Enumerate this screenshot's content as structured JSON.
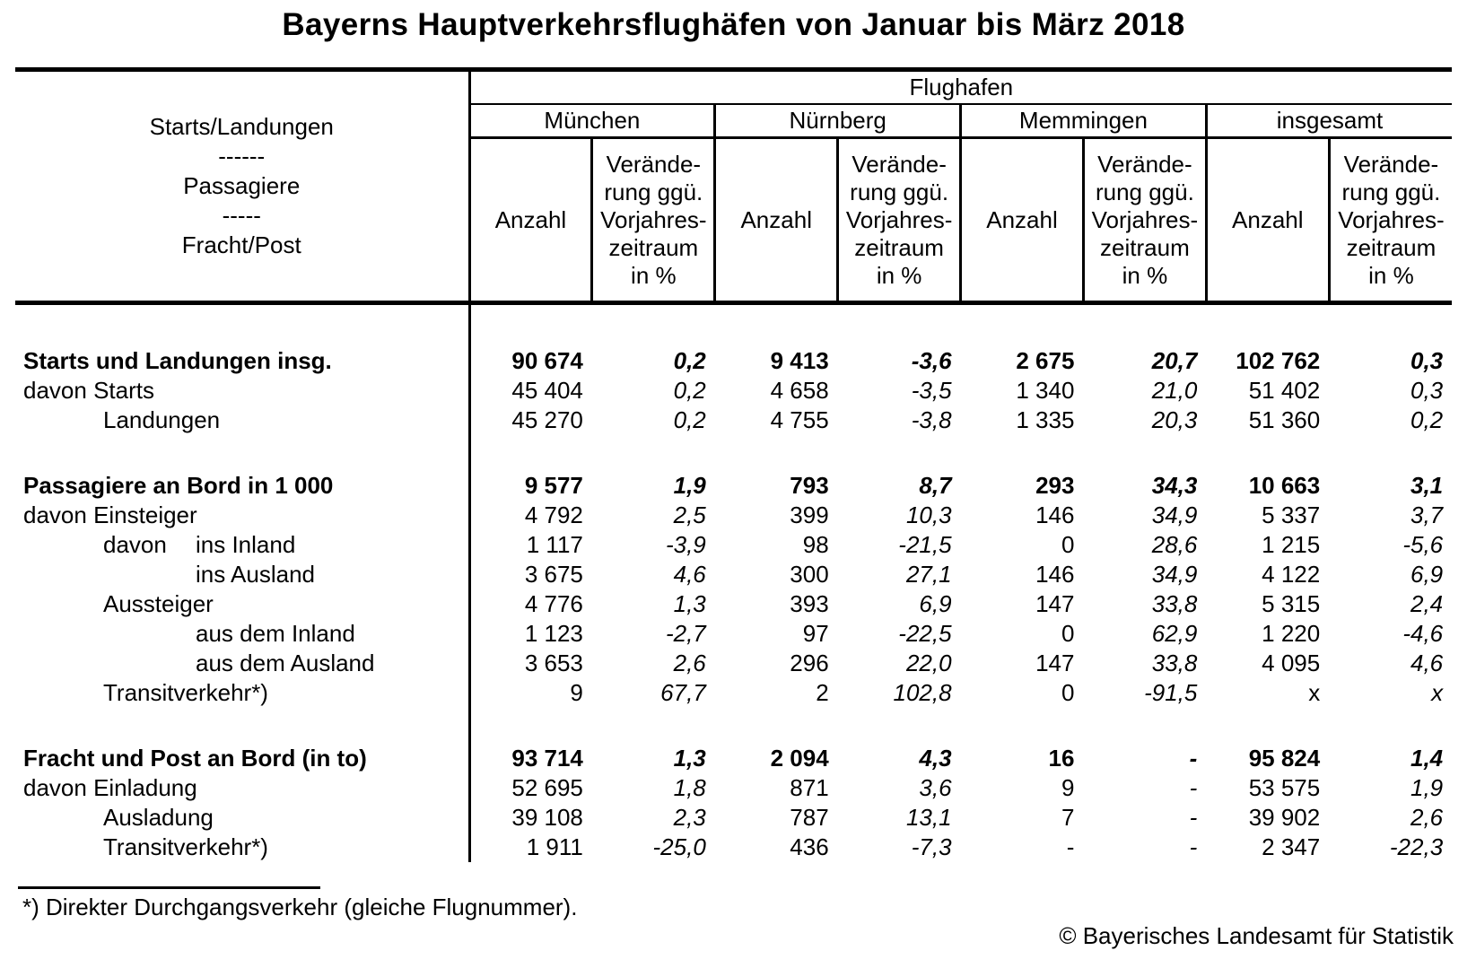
{
  "title": "Bayerns Hauptverkehrsflughäfen von Januar bis März 2018",
  "table": {
    "stub_header": "Starts/Landungen\n------\nPassagiere\n-----\nFracht/Post",
    "group_header": "Flughafen",
    "airports": [
      "München",
      "Nürnberg",
      "Memmingen",
      "insgesamt"
    ],
    "anzahl_label": "Anzahl",
    "change_label": "Verände-\nrung ggü.\nVorjahres-\nzeitraum\nin %",
    "rows": [
      {
        "label": "Starts und Landungen insg.",
        "indent": 0,
        "bold": true,
        "values": [
          "90 674",
          "0,2",
          "9 413",
          "-3,6",
          "2 675",
          "20,7",
          "102 762",
          "0,3"
        ]
      },
      {
        "label": "davon Starts",
        "indent": 0,
        "values": [
          "45 404",
          "0,2",
          "4 658",
          "-3,5",
          "1 340",
          "21,0",
          "51 402",
          "0,3"
        ]
      },
      {
        "label": "Landungen",
        "indent": 1,
        "values": [
          "45 270",
          "0,2",
          "4 755",
          "-3,8",
          "1 335",
          "20,3",
          "51 360",
          "0,2"
        ]
      },
      {
        "spacer": true
      },
      {
        "label": "Passagiere an Bord in 1 000",
        "indent": 0,
        "bold": true,
        "values": [
          "9 577",
          "1,9",
          "793",
          "8,7",
          "293",
          "34,3",
          "10 663",
          "3,1"
        ]
      },
      {
        "label": "davon Einsteiger",
        "indent": 0,
        "values": [
          "4 792",
          "2,5",
          "399",
          "10,3",
          "146",
          "34,9",
          "5 337",
          "3,7"
        ]
      },
      {
        "prefix": "davon",
        "label": "ins Inland",
        "indent": 1,
        "values": [
          "1 117",
          "-3,9",
          "98",
          "-21,5",
          "0",
          "28,6",
          "1 215",
          "-5,6"
        ]
      },
      {
        "label": "ins Ausland",
        "indent": 2,
        "values": [
          "3 675",
          "4,6",
          "300",
          "27,1",
          "146",
          "34,9",
          "4 122",
          "6,9"
        ]
      },
      {
        "label": "Aussteiger",
        "indent": 1,
        "values": [
          "4 776",
          "1,3",
          "393",
          "6,9",
          "147",
          "33,8",
          "5 315",
          "2,4"
        ]
      },
      {
        "label": "aus dem Inland",
        "indent": 2,
        "values": [
          "1 123",
          "-2,7",
          "97",
          "-22,5",
          "0",
          "62,9",
          "1 220",
          "-4,6"
        ]
      },
      {
        "label": "aus dem Ausland",
        "indent": 2,
        "values": [
          "3 653",
          "2,6",
          "296",
          "22,0",
          "147",
          "33,8",
          "4 095",
          "4,6"
        ]
      },
      {
        "label": "Transitverkehr*)",
        "indent": 1,
        "values": [
          "9",
          "67,7",
          "2",
          "102,8",
          "0",
          "-91,5",
          "x",
          "x"
        ]
      },
      {
        "spacer": true
      },
      {
        "label": "Fracht und Post an Bord (in to)",
        "indent": 0,
        "bold": true,
        "values": [
          "93 714",
          "1,3",
          "2 094",
          "4,3",
          "16",
          "-",
          "95 824",
          "1,4"
        ]
      },
      {
        "label": "davon Einladung",
        "indent": 0,
        "values": [
          "52 695",
          "1,8",
          "871",
          "3,6",
          "9",
          "-",
          "53 575",
          "1,9"
        ]
      },
      {
        "label": "Ausladung",
        "indent": 1,
        "values": [
          "39 108",
          "2,3",
          "787",
          "13,1",
          "7",
          "-",
          "39 902",
          "2,6"
        ]
      },
      {
        "label": "Transitverkehr*)",
        "indent": 1,
        "values": [
          "1 911",
          "-25,0",
          "436",
          "-7,3",
          "-",
          "-",
          "2 347",
          "-22,3"
        ]
      }
    ]
  },
  "footnote": "*) Direkter Durchgangsverkehr (gleiche Flugnummer).",
  "copyright": "© Bayerisches Landesamt für Statistik"
}
